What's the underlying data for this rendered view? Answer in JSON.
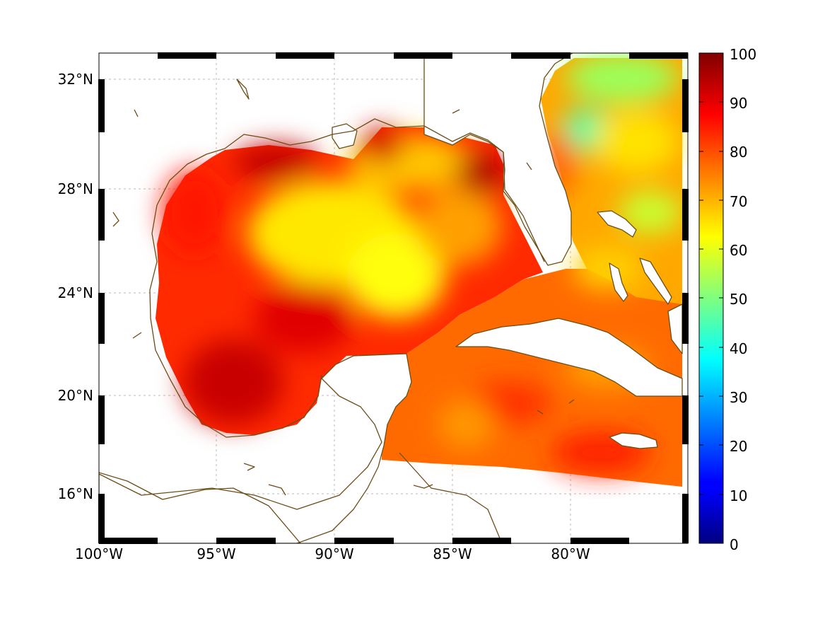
{
  "map": {
    "x_ticks": [
      "100°W",
      "95°W",
      "90°W",
      "85°W",
      "80°W"
    ],
    "y_ticks": [
      "32°N",
      "28°N",
      "24°N",
      "20°N",
      "16°N"
    ]
  },
  "colorbar": {
    "ticks": [
      "100",
      "90",
      "80",
      "70",
      "60",
      "50",
      "40",
      "30",
      "20",
      "10",
      "0"
    ],
    "min": 0,
    "max": 100
  },
  "colors": {
    "coastline": "#6b4e16",
    "grid": "#bbbbbb",
    "land": "#ffffff"
  }
}
